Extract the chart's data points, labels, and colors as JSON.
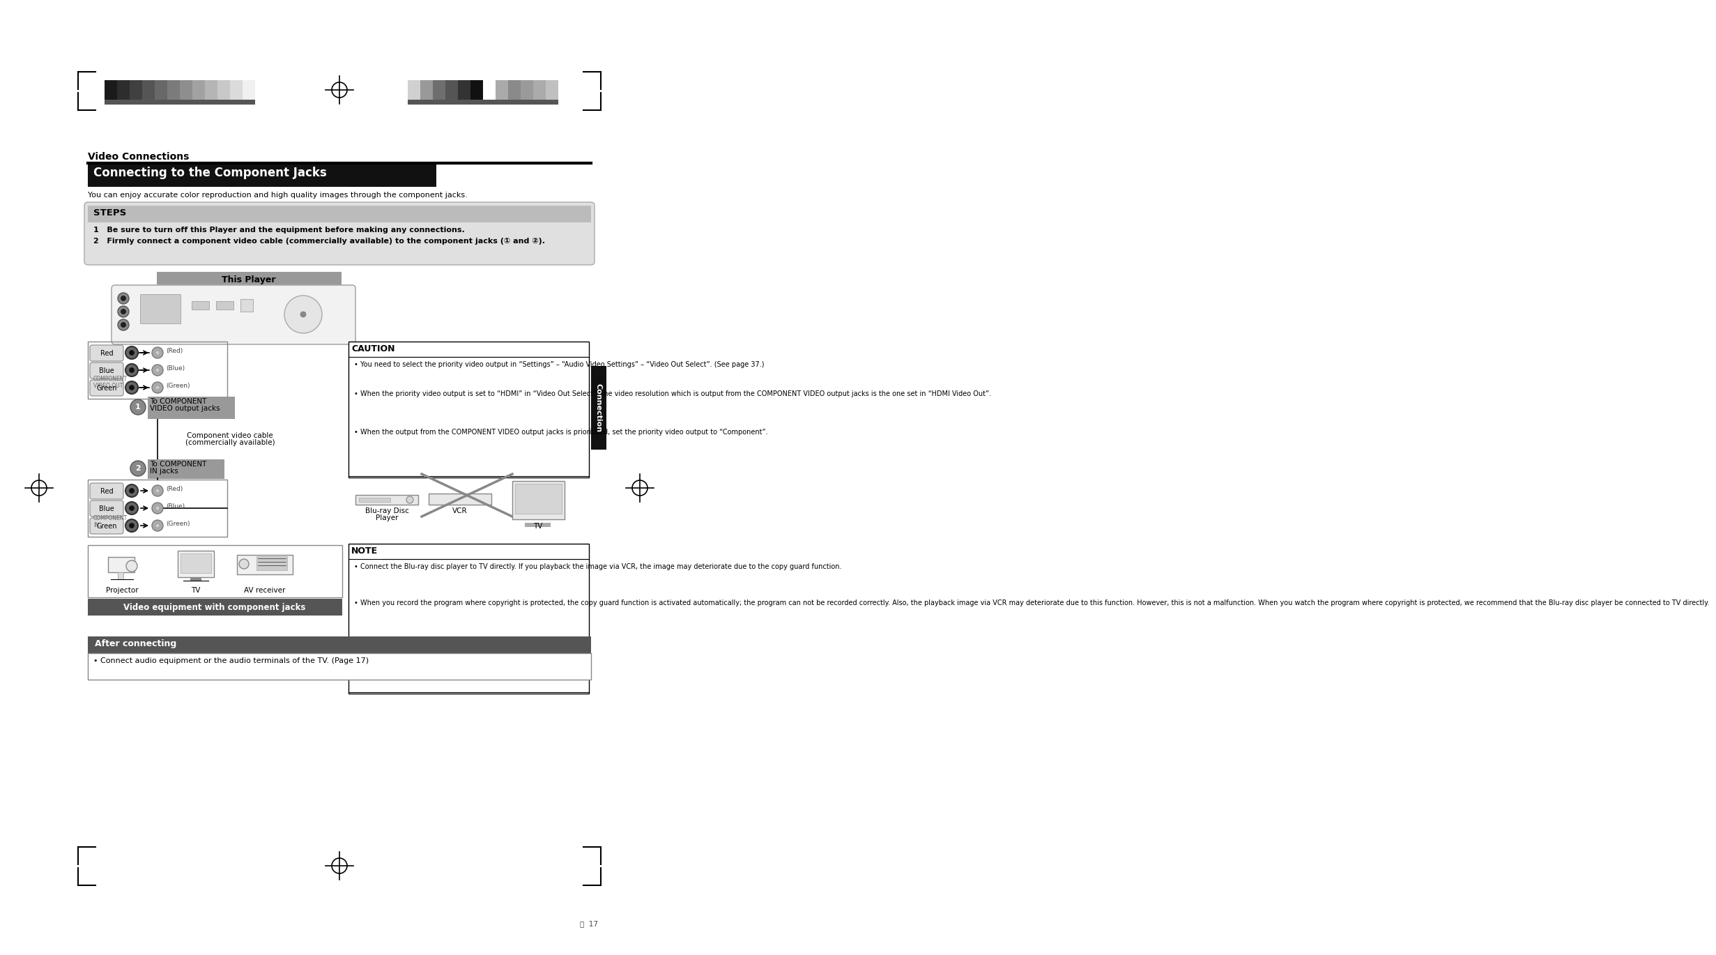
{
  "bg_color": "#ffffff",
  "title_section": "Video Connections",
  "main_title": "Connecting to the Component Jacks",
  "subtitle": "You can enjoy accurate color reproduction and high quality images through the component jacks.",
  "steps_title": "STEPS",
  "step1": "Be sure to turn off this Player and the equipment before making any connections.",
  "step2": "Firmly connect a component video cable (commercially available) to the component jacks (① and ②).",
  "this_player_label": "This Player",
  "to_component_output": "To COMPONENT\nVIDEO output jacks",
  "cable_label": "Component video cable\n(commercially available)",
  "to_component_input": "To COMPONENT\nIN jacks",
  "caution_title": "CAUTION",
  "caution_bullet1": "You need to select the priority video output in “Settings” – “Audio Video Settings” – “Video Out Select”. (See page 37.)",
  "caution_bullet2": "When the priority video output is set to “HDMI” in “Video Out Select”, the video resolution which is output from the COMPONENT VIDEO output jacks is the one set in “HDMI Video Out”.",
  "caution_bullet3": "When the output from the COMPONENT VIDEO output jacks is prioritized, set the priority video output to “Component”.",
  "connection_label": "Connection",
  "bluray_label": "Blu-ray Disc\nPlayer",
  "vcr_label": "VCR",
  "tv_label": "TV",
  "note_title": "NOTE",
  "note_bullet1": "Connect the Blu-ray disc player to TV directly. If you playback the image via VCR, the image may deteriorate due to the copy guard function.",
  "note_bullet2": "When you record the program where copyright is protected, the copy guard function is activated automatically; the program can not be recorded correctly. Also, the playback image via VCR may deteriorate due to this function. However, this is not a malfunction. When you watch the program where copyright is protected, we recommend that the Blu-ray disc player be connected to TV directly.",
  "video_equip_label": "Video equipment with component jacks",
  "projector_label": "Projector",
  "tv_equip_label": "TV",
  "av_receiver_label": "AV receiver",
  "after_connecting_title": "After connecting",
  "after_connecting_text": "• Connect audio equipment or the audio terminals of the TV. (Page 17)",
  "page_num": "ⓔ  17",
  "bar_left_colors": [
    "#1a1a1a",
    "#2d2d2d",
    "#404040",
    "#555555",
    "#686868",
    "#7b7b7b",
    "#8e8e8e",
    "#a2a2a2",
    "#b5b5b5",
    "#c8c8c8",
    "#dbdbdb",
    "#f0f0f0"
  ],
  "bar_right_colors": [
    "#d0d0d0",
    "#999999",
    "#6e6e6e",
    "#555555",
    "#333333",
    "#111111",
    "#ffffff",
    "#aaaaaa",
    "#8a8a8a",
    "#9a9a9a",
    "#ababab",
    "#c0c0c0"
  ]
}
